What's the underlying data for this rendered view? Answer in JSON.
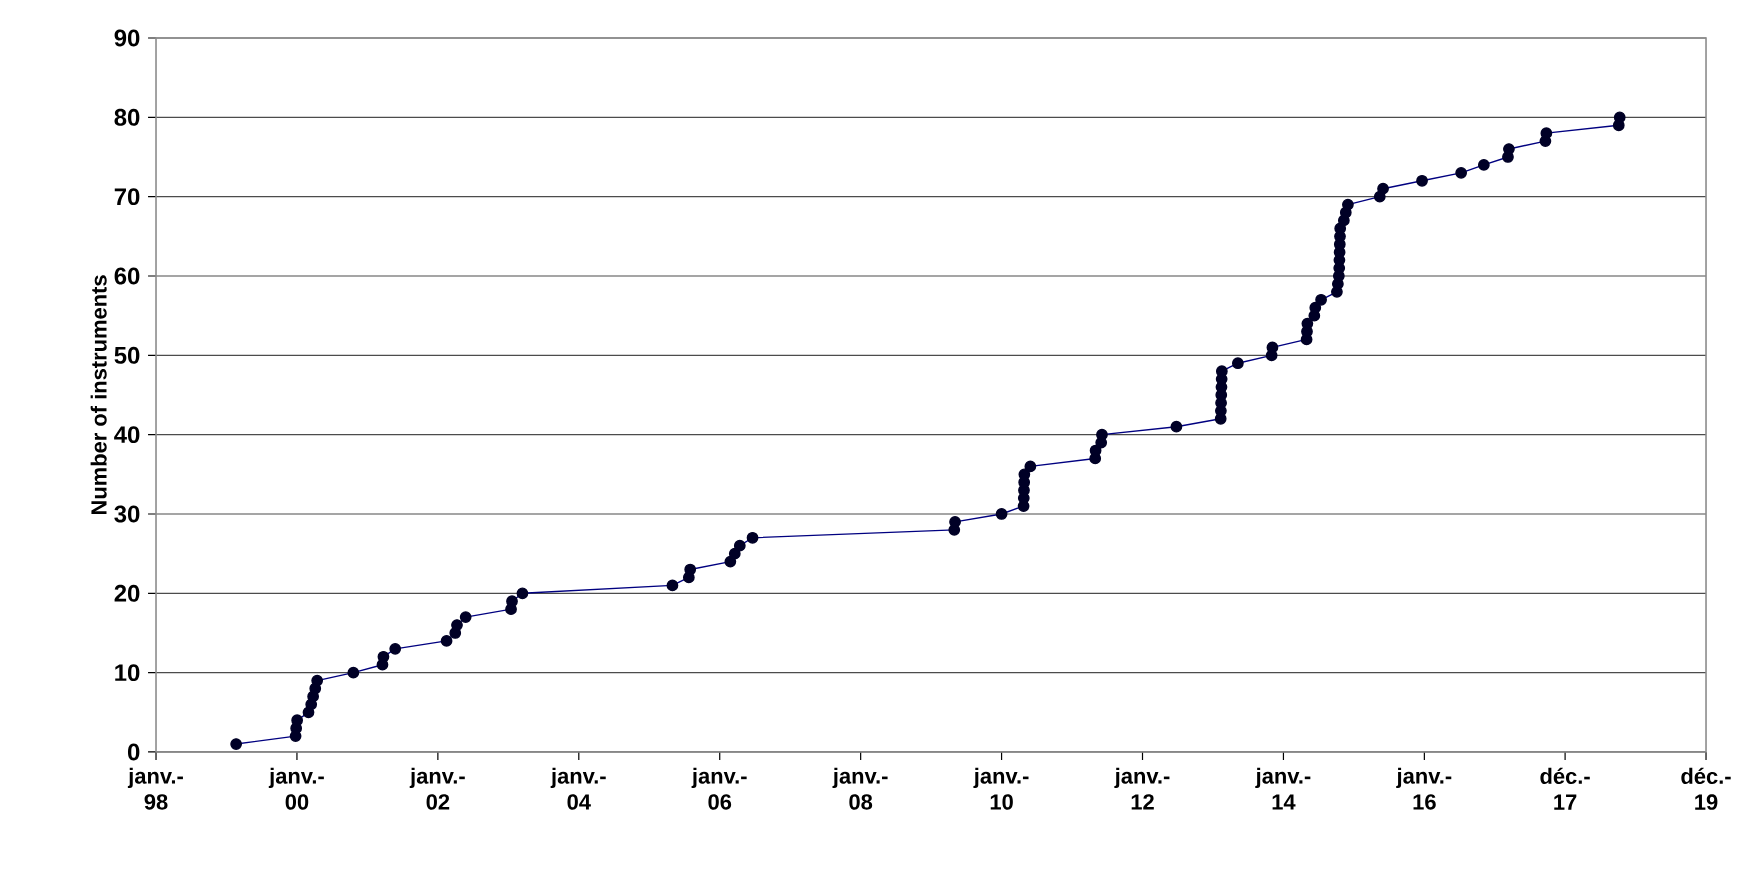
{
  "chart_data": {
    "type": "line",
    "ylabel": "Number of instruments",
    "x": [
      "1999-02-20",
      "1999-12-25",
      "1999-12-28",
      "2000-01-02",
      "2000-03-01",
      "2000-03-15",
      "2000-03-25",
      "2000-04-05",
      "2000-04-15",
      "2000-10-20",
      "2001-03-20",
      "2001-03-25",
      "2001-05-25",
      "2002-02-15",
      "2002-04-01",
      "2002-04-10",
      "2002-05-25",
      "2003-01-15",
      "2003-01-20",
      "2003-03-15",
      "2005-05-01",
      "2005-07-25",
      "2005-08-01",
      "2006-02-25",
      "2006-03-20",
      "2006-04-15",
      "2006-06-20",
      "2009-05-01",
      "2009-05-05",
      "2010-01-01",
      "2010-04-25",
      "2010-04-26",
      "2010-04-27",
      "2010-04-28",
      "2010-04-29",
      "2010-05-30",
      "2011-05-01",
      "2011-05-03",
      "2011-06-01",
      "2011-06-05",
      "2012-06-25",
      "2013-02-10",
      "2013-02-11",
      "2013-02-12",
      "2013-02-13",
      "2013-02-14",
      "2013-02-15",
      "2013-02-16",
      "2013-05-10",
      "2013-11-01",
      "2013-11-05",
      "2014-05-01",
      "2014-05-03",
      "2014-05-05",
      "2014-06-10",
      "2014-06-15",
      "2014-07-15",
      "2014-10-05",
      "2014-10-10",
      "2014-10-15",
      "2014-10-17",
      "2014-10-18",
      "2014-10-19",
      "2014-10-20",
      "2014-10-21",
      "2014-10-22",
      "2014-11-10",
      "2014-11-20",
      "2014-12-01",
      "2015-05-15",
      "2015-06-01",
      "2015-12-20",
      "2016-07-10",
      "2016-11-05",
      "2017-03-10",
      "2017-03-15",
      "2017-09-20",
      "2017-09-25",
      "2018-10-05",
      "2018-10-10"
    ],
    "series": [
      {
        "color": "#000080",
        "values": [
          1,
          2,
          3,
          4,
          5,
          6,
          7,
          8,
          9,
          10,
          11,
          12,
          13,
          14,
          15,
          16,
          17,
          18,
          19,
          20,
          21,
          22,
          23,
          24,
          25,
          26,
          27,
          28,
          29,
          30,
          31,
          32,
          33,
          34,
          35,
          36,
          37,
          38,
          39,
          40,
          41,
          42,
          43,
          44,
          45,
          46,
          47,
          48,
          49,
          50,
          51,
          52,
          53,
          54,
          55,
          56,
          57,
          58,
          59,
          60,
          61,
          62,
          63,
          64,
          65,
          66,
          67,
          68,
          69,
          70,
          71,
          72,
          73,
          74,
          75,
          76,
          77,
          78,
          79,
          80
        ]
      }
    ],
    "xlim": [
      "1998-01-01",
      "2019-12-31"
    ],
    "xticks": [
      {
        "value": "1998-01-01",
        "label": "janv.- 98"
      },
      {
        "value": "2000-01-01",
        "label": "janv.- 00"
      },
      {
        "value": "2002-01-01",
        "label": "janv.- 02"
      },
      {
        "value": "2004-01-01",
        "label": "janv.- 04"
      },
      {
        "value": "2006-01-01",
        "label": "janv.- 06"
      },
      {
        "value": "2008-01-01",
        "label": "janv.- 08"
      },
      {
        "value": "2010-01-01",
        "label": "janv.- 10"
      },
      {
        "value": "2012-01-01",
        "label": "janv.- 12"
      },
      {
        "value": "2014-01-01",
        "label": "janv.- 14"
      },
      {
        "value": "2016-01-01",
        "label": "janv.- 16"
      },
      {
        "value": "2017-12-31",
        "label": "déc.- 17"
      },
      {
        "value": "2019-12-31",
        "label": "déc.- 19"
      }
    ],
    "ylim": [
      0,
      90
    ],
    "yticks": [
      0,
      10,
      20,
      30,
      40,
      50,
      60,
      70,
      80,
      90
    ],
    "grid": "y",
    "marker": "circle",
    "line_style": "solid"
  }
}
